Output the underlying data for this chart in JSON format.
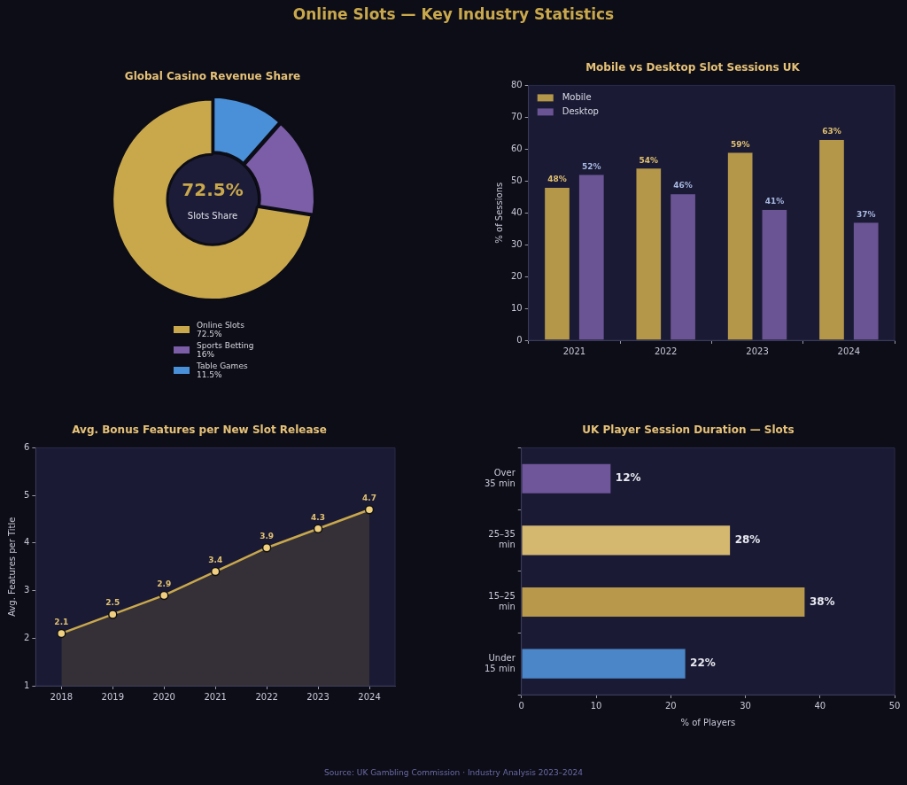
{
  "chart_data": [
    {
      "type": "other",
      "title": "Online Slots — Key Industry Statistics",
      "annotations": [
        "Source: UK Gambling Commission · Industry Analysis 2023–2024"
      ]
    },
    {
      "type": "donut",
      "title": "Global Casino Revenue Share",
      "categories": [
        "Online Slots",
        "Sports Betting",
        "Table Games"
      ],
      "values": [
        72.5,
        16,
        11.5
      ],
      "colors": [
        "#c9a84c",
        "#7b5ea7",
        "#4a90d9"
      ],
      "value_labels": [
        "72.5%",
        "16%",
        "11.5%"
      ],
      "legend": "bottom",
      "annotations": [
        "72.5%",
        "Slots Share"
      ]
    },
    {
      "type": "bar",
      "title": "Mobile vs Desktop Slot Sessions UK",
      "ylabel": "% of Sessions",
      "categories": [
        "2021",
        "2022",
        "2023",
        "2024"
      ],
      "series": [
        {
          "name": "Mobile",
          "color": "#b5974a",
          "values": [
            48,
            54,
            59,
            63
          ],
          "value_labels": [
            "48%",
            "54%",
            "59%",
            "63%"
          ]
        },
        {
          "name": "Desktop",
          "color": "#6b5494",
          "values": [
            52,
            46,
            41,
            37
          ],
          "value_labels": [
            "52%",
            "46%",
            "41%",
            "37%"
          ]
        }
      ],
      "ylim": [
        0,
        80
      ],
      "yticks": [
        0,
        10,
        20,
        30,
        40,
        50,
        60,
        70,
        80
      ],
      "legend": "top left"
    },
    {
      "type": "area",
      "title": "Avg. Bonus Features per New Slot Release",
      "ylabel": "Avg. Features per Title",
      "categories": [
        "2018",
        "2019",
        "2020",
        "2021",
        "2022",
        "2023",
        "2024"
      ],
      "values": [
        2.1,
        2.5,
        2.9,
        3.4,
        3.9,
        4.3,
        4.7
      ],
      "color": "#c9a84c",
      "ylim": [
        1,
        6
      ],
      "yticks": [
        1,
        2,
        3,
        4,
        5,
        6
      ],
      "data_labels": true,
      "marker": "circle"
    },
    {
      "type": "bar",
      "orientation": "horizontal",
      "title": "UK Player Session Duration — Slots",
      "xlabel": "% of Players",
      "categories": [
        "Over 35 min",
        "25–35 min",
        "15–25 min",
        "Under 15 min"
      ],
      "values": [
        12,
        28,
        38,
        22
      ],
      "colors": [
        "#6f559a",
        "#d4b870",
        "#b8984a",
        "#4a86c8"
      ],
      "value_labels": [
        "12%",
        "28%",
        "38%",
        "22%"
      ],
      "xlim": [
        0,
        50
      ],
      "xticks": [
        0,
        10,
        20,
        30,
        40,
        50
      ]
    }
  ]
}
